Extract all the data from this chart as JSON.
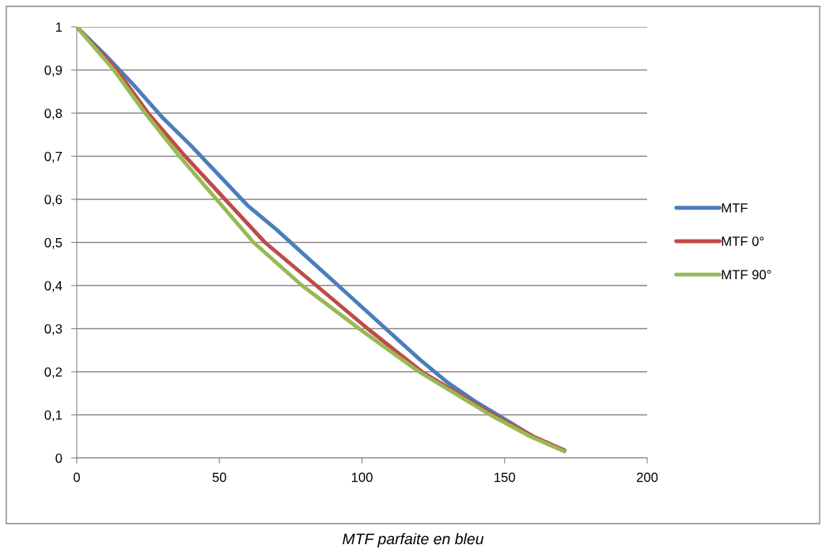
{
  "chart_data": {
    "type": "line",
    "annotations": [
      "MTF parfaite en bleu"
    ],
    "xlim": [
      0,
      200
    ],
    "xticks": [
      0,
      50,
      100,
      150,
      200
    ],
    "ylim": [
      0,
      1
    ],
    "yticks": [
      {
        "value": 0,
        "label": "0"
      },
      {
        "value": 0.1,
        "label": "0,1"
      },
      {
        "value": 0.2,
        "label": "0,2"
      },
      {
        "value": 0.3,
        "label": "0,3"
      },
      {
        "value": 0.4,
        "label": "0,4"
      },
      {
        "value": 0.5,
        "label": "0,5"
      },
      {
        "value": 0.6,
        "label": "0,6"
      },
      {
        "value": 0.7,
        "label": "0,7"
      },
      {
        "value": 0.8,
        "label": "0,8"
      },
      {
        "value": 0.9,
        "label": "0,9"
      },
      {
        "value": 1,
        "label": "1"
      }
    ],
    "grid": "y",
    "legend": "right",
    "line_style": "solid",
    "series": [
      {
        "name": "MTF",
        "color": "#4a7ebb",
        "x": [
          0,
          10,
          20,
          30,
          40,
          50,
          60,
          70,
          80,
          90,
          100,
          110,
          120,
          130,
          140,
          150,
          160
        ],
        "values": [
          1,
          0.935,
          0.865,
          0.79,
          0.725,
          0.655,
          0.585,
          0.53,
          0.47,
          0.41,
          0.35,
          0.29,
          0.23,
          0.175,
          0.13,
          0.09,
          0.05
        ]
      },
      {
        "name": "MTF 0°",
        "color": "#be4b48",
        "x": [
          0,
          14,
          25,
          38,
          52,
          66,
          84,
          102,
          121,
          146,
          160,
          171
        ],
        "values": [
          1,
          0.9,
          0.8,
          0.7,
          0.6,
          0.5,
          0.4,
          0.3,
          0.2,
          0.1,
          0.05,
          0.018
        ]
      },
      {
        "name": "MTF 90°",
        "color": "#98b954",
        "x": [
          0,
          13,
          24,
          36,
          49,
          62,
          79,
          99,
          120,
          145,
          159,
          171
        ],
        "values": [
          1,
          0.9,
          0.8,
          0.7,
          0.6,
          0.5,
          0.4,
          0.3,
          0.2,
          0.1,
          0.05,
          0.015
        ]
      }
    ]
  }
}
